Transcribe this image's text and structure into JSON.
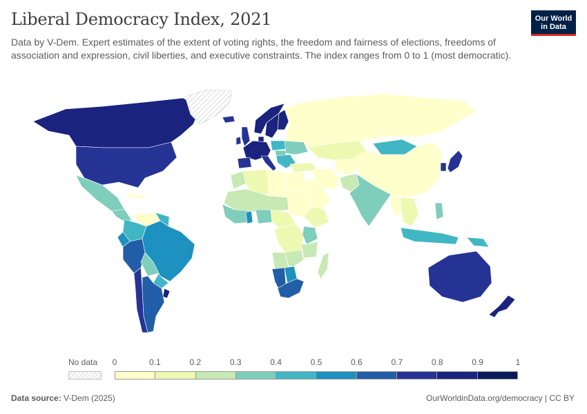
{
  "header": {
    "title": "Liberal Democracy Index, 2021",
    "subtitle": "Data by V-Dem. Expert estimates of the extent of voting rights, the freedom and fairness of elections, freedoms of association and expression, civil liberties, and executive constraints. The index ranges from 0 to 1 (most democratic)."
  },
  "logo": {
    "line1": "Our World",
    "line2": "in Data"
  },
  "legend": {
    "no_data_label": "No data",
    "ticks": [
      "0",
      "0.1",
      "0.2",
      "0.3",
      "0.4",
      "0.5",
      "0.6",
      "0.7",
      "0.8",
      "0.9",
      "1"
    ],
    "colors": [
      "#ffffcc",
      "#edf8b1",
      "#c7e9b4",
      "#7fcdbb",
      "#41b6c4",
      "#1d91c0",
      "#225ea8",
      "#253494",
      "#1a237e",
      "#081d58"
    ]
  },
  "footer": {
    "source_label": "Data source:",
    "source_value": "V-Dem (2025)",
    "attribution": "OurWorldinData.org/democracy | CC BY"
  },
  "map": {
    "regions": [
      {
        "name": "Canada",
        "value": 0.84
      },
      {
        "name": "United States",
        "value": 0.77
      },
      {
        "name": "Greenland",
        "value": null
      },
      {
        "name": "Mexico",
        "value": 0.37
      },
      {
        "name": "Central America",
        "value": 0.35
      },
      {
        "name": "Cuba",
        "value": 0.04
      },
      {
        "name": "Venezuela",
        "value": 0.06
      },
      {
        "name": "Colombia",
        "value": 0.46
      },
      {
        "name": "Ecuador",
        "value": 0.52
      },
      {
        "name": "Peru",
        "value": 0.63
      },
      {
        "name": "Bolivia",
        "value": 0.37
      },
      {
        "name": "Brazil",
        "value": 0.55
      },
      {
        "name": "Paraguay",
        "value": 0.41
      },
      {
        "name": "Chile",
        "value": 0.79
      },
      {
        "name": "Argentina",
        "value": 0.66
      },
      {
        "name": "Uruguay",
        "value": 0.8
      },
      {
        "name": "Guyana",
        "value": 0.45
      },
      {
        "name": "Ireland",
        "value": 0.78
      },
      {
        "name": "United Kingdom",
        "value": 0.77
      },
      {
        "name": "Iceland",
        "value": 0.73
      },
      {
        "name": "Norway",
        "value": 0.86
      },
      {
        "name": "Sweden",
        "value": 0.85
      },
      {
        "name": "Finland",
        "value": 0.83
      },
      {
        "name": "Denmark",
        "value": 0.87
      },
      {
        "name": "Western Europe",
        "value": 0.82
      },
      {
        "name": "Spain",
        "value": 0.76
      },
      {
        "name": "Italy",
        "value": 0.75
      },
      {
        "name": "Poland",
        "value": 0.45
      },
      {
        "name": "Hungary",
        "value": 0.36
      },
      {
        "name": "Balkans",
        "value": 0.42
      },
      {
        "name": "Ukraine",
        "value": 0.3
      },
      {
        "name": "Turkey",
        "value": 0.11
      },
      {
        "name": "Russia",
        "value": 0.08
      },
      {
        "name": "Kazakhstan",
        "value": 0.11
      },
      {
        "name": "Mongolia",
        "value": 0.48
      },
      {
        "name": "China",
        "value": 0.04
      },
      {
        "name": "Iran",
        "value": 0.08
      },
      {
        "name": "Saudi Arabia",
        "value": 0.02
      },
      {
        "name": "Afghanistan",
        "value": 0.02
      },
      {
        "name": "Pakistan",
        "value": 0.22
      },
      {
        "name": "India",
        "value": 0.33
      },
      {
        "name": "Myanmar",
        "value": 0.02
      },
      {
        "name": "Southeast Asia mainland",
        "value": 0.1
      },
      {
        "name": "Japan",
        "value": 0.74
      },
      {
        "name": "South Korea",
        "value": 0.7
      },
      {
        "name": "Philippines",
        "value": 0.3
      },
      {
        "name": "Indonesia",
        "value": 0.43
      },
      {
        "name": "Papua New Guinea",
        "value": 0.4
      },
      {
        "name": "Australia",
        "value": 0.77
      },
      {
        "name": "New Zealand",
        "value": 0.83
      },
      {
        "name": "Morocco",
        "value": 0.2
      },
      {
        "name": "Algeria",
        "value": 0.14
      },
      {
        "name": "Libya",
        "value": 0.08
      },
      {
        "name": "Egypt",
        "value": 0.08
      },
      {
        "name": "Sahel",
        "value": 0.2
      },
      {
        "name": "West Africa",
        "value": 0.33
      },
      {
        "name": "Ghana",
        "value": 0.58
      },
      {
        "name": "Nigeria",
        "value": 0.3
      },
      {
        "name": "Sudan",
        "value": 0.08
      },
      {
        "name": "Ethiopia",
        "value": 0.15
      },
      {
        "name": "Central Africa",
        "value": 0.14
      },
      {
        "name": "DR Congo",
        "value": 0.18
      },
      {
        "name": "Kenya",
        "value": 0.36
      },
      {
        "name": "Tanzania",
        "value": 0.26
      },
      {
        "name": "Angola",
        "value": 0.2
      },
      {
        "name": "Zambia",
        "value": 0.28
      },
      {
        "name": "Namibia",
        "value": 0.6
      },
      {
        "name": "Botswana",
        "value": 0.55
      },
      {
        "name": "South Africa",
        "value": 0.62
      },
      {
        "name": "Madagascar",
        "value": 0.27
      }
    ]
  }
}
